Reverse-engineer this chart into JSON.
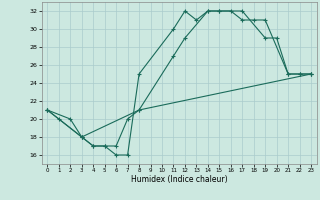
{
  "title": "",
  "xlabel": "Humidex (Indice chaleur)",
  "bg_color": "#cce8e0",
  "grid_color": "#aacccc",
  "line_color": "#1a6b5a",
  "xlim": [
    -0.5,
    23.5
  ],
  "ylim": [
    15,
    33
  ],
  "xticks": [
    0,
    1,
    2,
    3,
    4,
    5,
    6,
    7,
    8,
    9,
    10,
    11,
    12,
    13,
    14,
    15,
    16,
    17,
    18,
    19,
    20,
    21,
    22,
    23
  ],
  "yticks": [
    16,
    18,
    20,
    22,
    24,
    26,
    28,
    30,
    32
  ],
  "line1": {
    "x": [
      0,
      1,
      3,
      4,
      5,
      6,
      7,
      8,
      11,
      12,
      13,
      14,
      15,
      16,
      17,
      18,
      19,
      21,
      22,
      23
    ],
    "y": [
      21,
      20,
      18,
      17,
      17,
      16,
      16,
      25,
      30,
      32,
      31,
      32,
      32,
      32,
      31,
      31,
      31,
      25,
      25,
      25
    ]
  },
  "line2": {
    "x": [
      0,
      2,
      3,
      4,
      5,
      6,
      7,
      8,
      23
    ],
    "y": [
      21,
      20,
      18,
      17,
      17,
      17,
      20,
      21,
      25
    ]
  },
  "line3": {
    "x": [
      0,
      3,
      8,
      11,
      12,
      14,
      15,
      17,
      19,
      20,
      21,
      22,
      23
    ],
    "y": [
      21,
      18,
      21,
      27,
      29,
      32,
      32,
      32,
      29,
      29,
      25,
      25,
      25
    ]
  }
}
